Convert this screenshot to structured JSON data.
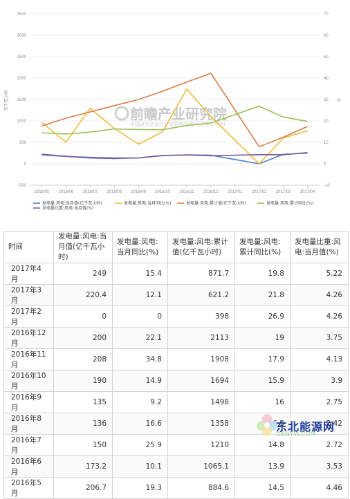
{
  "chart_data": {
    "type": "line",
    "categories": [
      "2016/05",
      "2016/06",
      "2016/07",
      "2016/08",
      "2016/09",
      "2016/10",
      "2016/11",
      "2016/12",
      "2017/01",
      "2017/02",
      "2017/03",
      "2017/04"
    ],
    "y_left": {
      "label": "亿千瓦小时",
      "ylim": [
        -500,
        3500
      ],
      "ticks": [
        -500,
        0,
        500,
        1000,
        1500,
        2000,
        2500,
        3000,
        3500
      ]
    },
    "y_right": {
      "label": "%",
      "ylim": [
        -10,
        70
      ],
      "ticks": [
        -10,
        0,
        10,
        20,
        30,
        40,
        50,
        60,
        70
      ]
    },
    "grid": true,
    "legend_position": "bottom",
    "series": [
      {
        "name": "发电量:风电:当月值(亿千瓦小时)",
        "axis": "left",
        "color": "#4a7fc1",
        "values": [
          206.7,
          173.2,
          150,
          136,
          135,
          190,
          208,
          200,
          100,
          0,
          220.4,
          249
        ]
      },
      {
        "name": "发电量:风电:当月同比(%)",
        "axis": "right",
        "color": "#f0b93f",
        "values": [
          19.3,
          10.1,
          25.9,
          16.6,
          9.2,
          14.9,
          34.8,
          22.1,
          11,
          0,
          12.1,
          15.4
        ]
      },
      {
        "name": "发电量:风电:累计值(亿千瓦小时)",
        "axis": "left",
        "color": "#d77f45",
        "values": [
          884.6,
          1065.1,
          1210,
          1358,
          1498,
          1694,
          1908,
          2113,
          1255,
          398,
          621.2,
          871.7
        ]
      },
      {
        "name": "发电量:风电:累计同比(%)",
        "axis": "right",
        "color": "#9bbf54",
        "values": [
          14.5,
          13.9,
          14.8,
          16.3,
          16,
          15.9,
          17.9,
          19,
          23,
          26.9,
          21.8,
          19.8
        ]
      },
      {
        "name": "发电量比重:风电:当月值(%)",
        "axis": "right",
        "color": "#7a5a9c",
        "values": [
          4.46,
          3.53,
          2.72,
          2.42,
          2.75,
          3.9,
          4.13,
          3.75,
          4.0,
          4.26,
          4.26,
          5.22
        ]
      }
    ]
  },
  "watermark": {
    "main": "前瞻产业研究院",
    "sub": "中国研究咨询行业领导者(前瞻经济学人APP)"
  },
  "table": {
    "headers": [
      "时间",
      "发电量:风电:当月值(亿千瓦小时)",
      "发电量:风电:当月同比(%)",
      "发电量:风电:累计值(亿千瓦小时)",
      "发电量:风电:累计同比(%)",
      "发电量比重:风电:当月值(%)"
    ],
    "rows": [
      [
        "2017年4月",
        "249",
        "15.4",
        "871.7",
        "19.8",
        "5.22"
      ],
      [
        "2017年3月",
        "220.4",
        "12.1",
        "621.2",
        "21.8",
        "4.26"
      ],
      [
        "2017年2月",
        "0",
        "0",
        "398",
        "26.9",
        "4.26"
      ],
      [
        "2016年12月",
        "200",
        "22.1",
        "2113",
        "19",
        "3.75"
      ],
      [
        "2016年11月",
        "208",
        "34.8",
        "1908",
        "17.9",
        "4.13"
      ],
      [
        "2016年10月",
        "190",
        "14.9",
        "1694",
        "15.9",
        "3.9"
      ],
      [
        "2016年9月",
        "135",
        "9.2",
        "1498",
        "16",
        "2.75"
      ],
      [
        "2016年8月",
        "136",
        "16.6",
        "1358",
        "16.3",
        "2.42"
      ],
      [
        "2016年7月",
        "150",
        "25.9",
        "1210",
        "14.8",
        "2.72"
      ],
      [
        "2016年6月",
        "173.2",
        "10.1",
        "1065.1",
        "13.9",
        "3.53"
      ],
      [
        "2016年5月",
        "206.7",
        "19.3",
        "884.6",
        "14.5",
        "4.46"
      ]
    ]
  },
  "corner_logo": {
    "text": "东北能源网",
    "sub": "DBNYW.COM"
  }
}
